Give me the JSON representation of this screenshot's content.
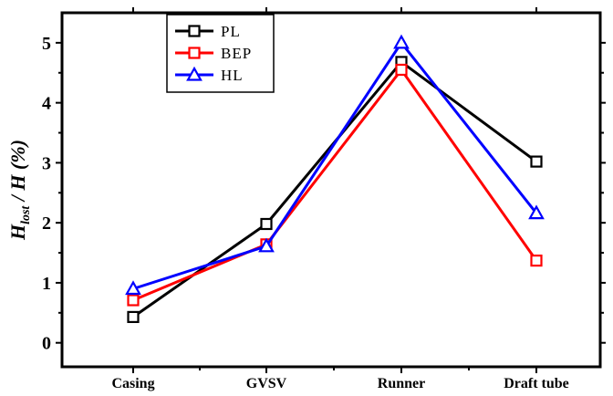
{
  "chart_data": {
    "type": "line",
    "categories": [
      "Casing",
      "GVSV",
      "Runner",
      "Draft tube"
    ],
    "ylabel_parts": [
      "H",
      "lost",
      " / ",
      "H",
      " (%)"
    ],
    "ylim": [
      -0.4,
      5.5
    ],
    "yticks": [
      "0",
      "1",
      "2",
      "3",
      "4",
      "5"
    ],
    "grid": false,
    "legend_position": "top-center",
    "series": [
      {
        "name": "PL",
        "values": [
          0.43,
          1.98,
          4.68,
          3.02
        ],
        "color": "#000000",
        "marker": "square"
      },
      {
        "name": "BEP",
        "values": [
          0.71,
          1.64,
          4.55,
          1.37
        ],
        "color": "#ff0000",
        "marker": "square"
      },
      {
        "name": "HL",
        "values": [
          0.9,
          1.61,
          5.0,
          2.16
        ],
        "color": "#0000ff",
        "marker": "triangle"
      }
    ]
  }
}
